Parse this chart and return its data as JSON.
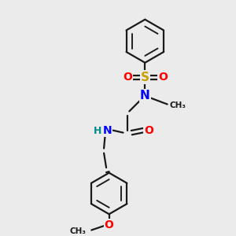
{
  "bg_color": "#EBEBEB",
  "bond_color": "#1A1A1A",
  "atom_colors": {
    "N": "#0000FF",
    "O": "#FF0000",
    "S": "#C8A000",
    "H": "#008B8B",
    "C": "#1A1A1A"
  },
  "figsize": [
    3.0,
    3.0
  ],
  "dpi": 100,
  "xlim": [
    0,
    10
  ],
  "ylim": [
    0,
    10
  ]
}
